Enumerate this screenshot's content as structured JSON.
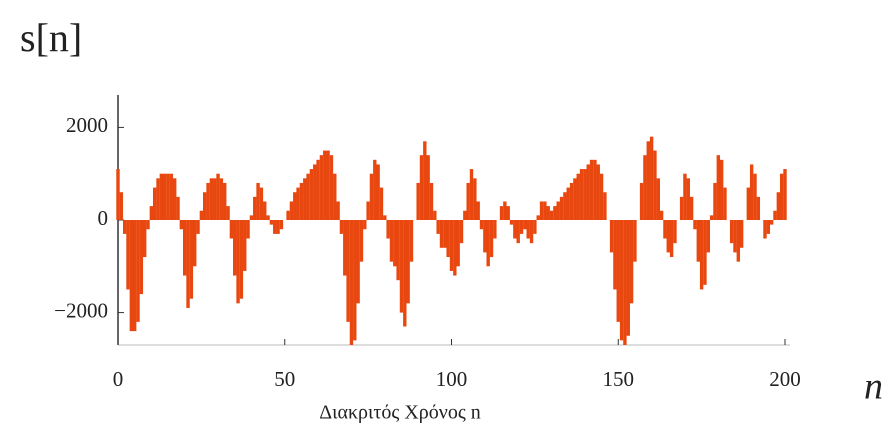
{
  "chart_data": {
    "type": "stem",
    "y_axis_label": "s[n]",
    "annotation": "n",
    "x_axis_label": "Διακριτός Χρόνος n",
    "color": "#e8470f",
    "xlim": [
      0,
      200
    ],
    "xticks": [
      0,
      50,
      100,
      150,
      200
    ],
    "ylim": [
      -2700,
      2700
    ],
    "yticks": [
      2000,
      0,
      {
        "value": -2000,
        "label": "−2000"
      }
    ],
    "x": [
      0,
      1,
      2,
      3,
      4,
      5,
      6,
      7,
      8,
      9,
      10,
      11,
      12,
      13,
      14,
      15,
      16,
      17,
      18,
      19,
      20,
      21,
      22,
      23,
      24,
      25,
      26,
      27,
      28,
      29,
      30,
      31,
      32,
      33,
      34,
      35,
      36,
      37,
      38,
      39,
      40,
      41,
      42,
      43,
      44,
      45,
      46,
      47,
      48,
      49,
      50,
      51,
      52,
      53,
      54,
      55,
      56,
      57,
      58,
      59,
      60,
      61,
      62,
      63,
      64,
      65,
      66,
      67,
      68,
      69,
      70,
      71,
      72,
      73,
      74,
      75,
      76,
      77,
      78,
      79,
      80,
      81,
      82,
      83,
      84,
      85,
      86,
      87,
      88,
      89,
      90,
      91,
      92,
      93,
      94,
      95,
      96,
      97,
      98,
      99,
      100,
      101,
      102,
      103,
      104,
      105,
      106,
      107,
      108,
      109,
      110,
      111,
      112,
      113,
      114,
      115,
      116,
      117,
      118,
      119,
      120,
      121,
      122,
      123,
      124,
      125,
      126,
      127,
      128,
      129,
      130,
      131,
      132,
      133,
      134,
      135,
      136,
      137,
      138,
      139,
      140,
      141,
      142,
      143,
      144,
      145,
      146,
      147,
      148,
      149,
      150,
      151,
      152,
      153,
      154,
      155,
      156,
      157,
      158,
      159,
      160,
      161,
      162,
      163,
      164,
      165,
      166,
      167,
      168,
      169,
      170,
      171,
      172,
      173,
      174,
      175,
      176,
      177,
      178,
      179,
      180,
      181,
      182,
      183,
      184,
      185,
      186,
      187,
      188,
      189,
      190,
      191,
      192,
      193,
      194,
      195,
      196,
      197,
      198,
      199,
      200
    ],
    "values": [
      1100,
      600,
      -300,
      -1500,
      -2400,
      -2400,
      -2200,
      -1600,
      -800,
      -200,
      300,
      700,
      900,
      1000,
      1000,
      1000,
      1000,
      900,
      500,
      -200,
      -1200,
      -1900,
      -1700,
      -1000,
      -300,
      200,
      600,
      800,
      900,
      900,
      1000,
      900,
      800,
      300,
      -400,
      -1200,
      -1800,
      -1700,
      -1100,
      -400,
      100,
      500,
      800,
      700,
      400,
      100,
      -100,
      -300,
      -300,
      -200,
      0,
      200,
      400,
      600,
      700,
      800,
      900,
      1000,
      1100,
      1200,
      1300,
      1400,
      1500,
      1500,
      1400,
      1000,
      400,
      -300,
      -1200,
      -2200,
      -2700,
      -2600,
      -1800,
      -900,
      -200,
      400,
      1000,
      1300,
      1200,
      700,
      100,
      -400,
      -900,
      -1000,
      -1300,
      -2000,
      -2300,
      -1800,
      -900,
      0,
      800,
      1400,
      1700,
      1400,
      800,
      200,
      -300,
      -600,
      -600,
      -800,
      -1100,
      -1200,
      -1000,
      -500,
      200,
      800,
      1100,
      900,
      400,
      -200,
      -700,
      -1000,
      -800,
      -400,
      0,
      300,
      400,
      300,
      -100,
      -400,
      -500,
      -300,
      -200,
      -400,
      -500,
      -300,
      100,
      400,
      400,
      300,
      200,
      300,
      400,
      500,
      600,
      700,
      800,
      900,
      1000,
      1100,
      1100,
      1200,
      1300,
      1300,
      1200,
      1000,
      600,
      0,
      -700,
      -1500,
      -2200,
      -2600,
      -2700,
      -2500,
      -1800,
      -900,
      0,
      800,
      1400,
      1700,
      1800,
      1500,
      900,
      200,
      -400,
      -700,
      -800,
      -500,
      0,
      500,
      1000,
      900,
      500,
      -200,
      -900,
      -1500,
      -1400,
      -700,
      100,
      800,
      1400,
      1300,
      700,
      0,
      -500,
      -700,
      -900,
      -600,
      0,
      700,
      1200,
      1000,
      500,
      0,
      -400,
      -300,
      -100,
      200,
      600,
      1000,
      1100
    ]
  }
}
